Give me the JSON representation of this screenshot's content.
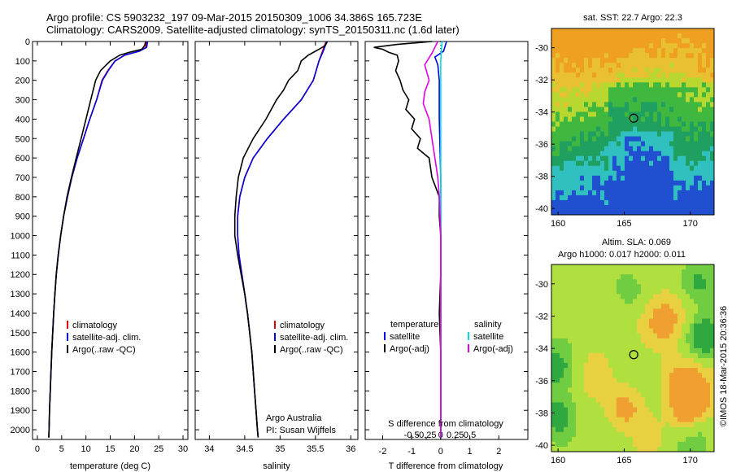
{
  "title": {
    "line1": "Argo profile: CS 5903232_197 09-Mar-2015 20150309_1006 34.386S 165.723E",
    "line2": "Climatology: CARS2009. Satellite-adjusted climatology: synTS_20150311.nc (1.6d later)"
  },
  "colors": {
    "climatology": "#e00000",
    "satellite": "#0000e0",
    "argo": "#000000",
    "sal_satellite": "#00e0e0",
    "sal_argo": "#e000e0"
  },
  "credits": {
    "org": "Argo Australia",
    "pi": "PI: Susan Wijffels",
    "stamp": "©IMOS 18-Mar-2015 20:36:36"
  },
  "chart_data": [
    {
      "type": "line",
      "id": "temperature",
      "xlabel": "temperature (deg C)",
      "ylabel": "",
      "xlim": [
        -1,
        31
      ],
      "ylim": [
        2050,
        0
      ],
      "xticks": [
        0,
        5,
        10,
        15,
        20,
        25,
        30
      ],
      "yticks": [
        0,
        100,
        200,
        300,
        400,
        500,
        600,
        700,
        800,
        900,
        1000,
        1100,
        1200,
        1300,
        1400,
        1500,
        1600,
        1700,
        1800,
        1900,
        2000
      ],
      "legend": [
        "climatology",
        "satellite-adj. clim.",
        "Argo(..raw -QC)"
      ],
      "series": [
        {
          "name": "climatology",
          "color_key": "climatology",
          "points": [
            [
              22.5,
              0
            ],
            [
              22.3,
              30
            ],
            [
              21,
              50
            ],
            [
              18,
              70
            ],
            [
              16,
              100
            ],
            [
              14.5,
              150
            ],
            [
              13.3,
              200
            ],
            [
              12.2,
              300
            ],
            [
              10.8,
              400
            ],
            [
              9.5,
              500
            ],
            [
              8.2,
              600
            ],
            [
              7.1,
              700
            ],
            [
              6.2,
              800
            ],
            [
              5.4,
              900
            ],
            [
              4.8,
              1000
            ],
            [
              4.3,
              1100
            ],
            [
              3.9,
              1200
            ],
            [
              3.6,
              1300
            ],
            [
              3.35,
              1400
            ],
            [
              3.15,
              1500
            ],
            [
              2.95,
              1600
            ],
            [
              2.8,
              1700
            ],
            [
              2.65,
              1800
            ],
            [
              2.5,
              1900
            ],
            [
              2.4,
              2000
            ],
            [
              2.35,
              2040
            ]
          ]
        },
        {
          "name": "satellite-adj. clim.",
          "color_key": "satellite",
          "points": [
            [
              22.7,
              0
            ],
            [
              22.5,
              30
            ],
            [
              21,
              50
            ],
            [
              18,
              70
            ],
            [
              16,
              100
            ],
            [
              14.6,
              150
            ],
            [
              13.4,
              200
            ],
            [
              12.2,
              300
            ],
            [
              10.8,
              400
            ],
            [
              9.5,
              500
            ],
            [
              8.2,
              600
            ],
            [
              7.1,
              700
            ],
            [
              6.2,
              800
            ],
            [
              5.4,
              900
            ],
            [
              4.8,
              1000
            ],
            [
              4.3,
              1100
            ],
            [
              3.9,
              1200
            ],
            [
              3.6,
              1300
            ],
            [
              3.35,
              1400
            ],
            [
              3.15,
              1500
            ],
            [
              2.95,
              1600
            ],
            [
              2.8,
              1700
            ],
            [
              2.65,
              1800
            ],
            [
              2.5,
              1900
            ],
            [
              2.4,
              2000
            ],
            [
              2.35,
              2040
            ]
          ]
        },
        {
          "name": "Argo(..raw -QC)",
          "color_key": "argo",
          "points": [
            [
              22.3,
              0
            ],
            [
              22.1,
              20
            ],
            [
              21.5,
              40
            ],
            [
              19,
              55
            ],
            [
              17,
              70
            ],
            [
              15,
              100
            ],
            [
              13,
              150
            ],
            [
              12,
              200
            ],
            [
              11,
              300
            ],
            [
              10,
              400
            ],
            [
              9,
              500
            ],
            [
              8,
              600
            ],
            [
              7,
              700
            ],
            [
              6.1,
              800
            ],
            [
              5.4,
              900
            ],
            [
              4.8,
              1000
            ],
            [
              4.3,
              1100
            ],
            [
              3.9,
              1200
            ],
            [
              3.6,
              1300
            ],
            [
              3.35,
              1400
            ],
            [
              3.15,
              1500
            ],
            [
              2.95,
              1600
            ],
            [
              2.8,
              1700
            ],
            [
              2.65,
              1800
            ],
            [
              2.5,
              1900
            ],
            [
              2.4,
              2000
            ],
            [
              2.35,
              2040
            ]
          ]
        }
      ]
    },
    {
      "type": "line",
      "id": "salinity",
      "xlabel": "salinity",
      "xlim": [
        33.8,
        36.1
      ],
      "ylim": [
        2050,
        0
      ],
      "xticks": [
        34,
        34.5,
        35,
        35.5,
        36
      ],
      "legend": [
        "climatology",
        "satellite-adj. clim.",
        "Argo(..raw -QC)"
      ],
      "series": [
        {
          "name": "climatology",
          "color_key": "climatology",
          "points": [
            [
              35.65,
              0
            ],
            [
              35.6,
              50
            ],
            [
              35.55,
              100
            ],
            [
              35.47,
              200
            ],
            [
              35.3,
              300
            ],
            [
              35.05,
              400
            ],
            [
              34.82,
              500
            ],
            [
              34.62,
              600
            ],
            [
              34.5,
              700
            ],
            [
              34.43,
              800
            ],
            [
              34.4,
              900
            ],
            [
              34.4,
              1000
            ],
            [
              34.42,
              1100
            ],
            [
              34.46,
              1200
            ],
            [
              34.5,
              1300
            ],
            [
              34.54,
              1400
            ],
            [
              34.57,
              1500
            ],
            [
              34.6,
              1600
            ],
            [
              34.62,
              1700
            ],
            [
              34.64,
              1800
            ],
            [
              34.66,
              1900
            ],
            [
              34.68,
              2000
            ],
            [
              34.69,
              2040
            ]
          ]
        },
        {
          "name": "satellite-adj. clim.",
          "color_key": "satellite",
          "points": [
            [
              35.66,
              0
            ],
            [
              35.61,
              50
            ],
            [
              35.55,
              100
            ],
            [
              35.47,
              200
            ],
            [
              35.3,
              300
            ],
            [
              35.05,
              400
            ],
            [
              34.82,
              500
            ],
            [
              34.62,
              600
            ],
            [
              34.5,
              700
            ],
            [
              34.43,
              800
            ],
            [
              34.4,
              900
            ],
            [
              34.4,
              1000
            ],
            [
              34.42,
              1100
            ],
            [
              34.46,
              1200
            ],
            [
              34.5,
              1300
            ],
            [
              34.54,
              1400
            ],
            [
              34.57,
              1500
            ],
            [
              34.6,
              1600
            ],
            [
              34.62,
              1700
            ],
            [
              34.64,
              1800
            ],
            [
              34.66,
              1900
            ],
            [
              34.68,
              2000
            ],
            [
              34.69,
              2040
            ]
          ]
        },
        {
          "name": "Argo(..raw -QC)",
          "color_key": "argo",
          "points": [
            [
              35.67,
              0
            ],
            [
              35.64,
              20
            ],
            [
              35.55,
              40
            ],
            [
              35.4,
              70
            ],
            [
              35.3,
              100
            ],
            [
              35.25,
              150
            ],
            [
              35.12,
              200
            ],
            [
              35.05,
              250
            ],
            [
              34.95,
              300
            ],
            [
              34.8,
              400
            ],
            [
              34.62,
              500
            ],
            [
              34.48,
              600
            ],
            [
              34.41,
              700
            ],
            [
              34.38,
              800
            ],
            [
              34.36,
              900
            ],
            [
              34.36,
              1000
            ],
            [
              34.4,
              1100
            ],
            [
              34.45,
              1200
            ],
            [
              34.5,
              1300
            ],
            [
              34.54,
              1400
            ],
            [
              34.57,
              1500
            ],
            [
              34.6,
              1600
            ],
            [
              34.62,
              1700
            ],
            [
              34.64,
              1800
            ],
            [
              34.66,
              1900
            ],
            [
              34.68,
              2000
            ],
            [
              34.69,
              2040
            ]
          ]
        }
      ]
    },
    {
      "type": "line",
      "id": "difference",
      "xlabel": "T difference from climatology",
      "top_axis_label": "S difference from climatology",
      "xlim": [
        -2.6,
        3.0
      ],
      "ylim": [
        2050,
        0
      ],
      "xticks": [
        -2,
        -1,
        0,
        1,
        2
      ],
      "top_ticks": [
        "-0.5",
        "-0.25",
        "0",
        "0.25",
        "0.5"
      ],
      "top_tick_values": [
        -1.0,
        -0.5,
        0,
        0.5,
        1.0
      ],
      "legend_temperature": {
        "header": "temperature",
        "items": [
          "satellite",
          "Argo(-adj)"
        ]
      },
      "legend_salinity": {
        "header": "salinity",
        "items": [
          "satellite",
          "Argo(-adj)"
        ]
      },
      "series": [
        {
          "name": "satellite",
          "color_key": "satellite",
          "points": [
            [
              0.2,
              0
            ],
            [
              0.1,
              50
            ],
            [
              -0.2,
              80
            ],
            [
              -0.1,
              120
            ],
            [
              -0.05,
              200
            ],
            [
              -0.05,
              400
            ],
            [
              0,
              700
            ],
            [
              0,
              1000
            ],
            [
              0,
              1500
            ],
            [
              0,
              2040
            ]
          ]
        },
        {
          "name": "Argo(-adj)",
          "color_key": "argo",
          "points": [
            [
              -0.3,
              0
            ],
            [
              -1.5,
              15
            ],
            [
              -2.3,
              30
            ],
            [
              -2.0,
              40
            ],
            [
              -1.8,
              55
            ],
            [
              -1.5,
              70
            ],
            [
              -1.45,
              100
            ],
            [
              -1.55,
              150
            ],
            [
              -1.4,
              200
            ],
            [
              -1.3,
              250
            ],
            [
              -1.1,
              300
            ],
            [
              -1.2,
              350
            ],
            [
              -0.9,
              400
            ],
            [
              -1.0,
              450
            ],
            [
              -0.7,
              500
            ],
            [
              -0.8,
              550
            ],
            [
              -0.4,
              600
            ],
            [
              -0.3,
              700
            ],
            [
              -0.05,
              800
            ],
            [
              -0.05,
              900
            ],
            [
              0,
              1000
            ],
            [
              0,
              1200
            ],
            [
              -0.05,
              1400
            ],
            [
              0,
              1600
            ],
            [
              0,
              1800
            ],
            [
              0,
              2040
            ]
          ]
        },
        {
          "name": "satellite",
          "color_key": "sal_satellite",
          "points": [
            [
              0.05,
              0
            ],
            [
              0.02,
              50
            ],
            [
              0,
              100
            ],
            [
              0,
              300
            ],
            [
              0,
              600
            ],
            [
              0,
              1000
            ],
            [
              0,
              2040
            ]
          ]
        },
        {
          "name": "Argo(-adj)",
          "color_key": "sal_argo",
          "points": [
            [
              -0.1,
              0
            ],
            [
              -0.2,
              30
            ],
            [
              -0.3,
              60
            ],
            [
              -0.55,
              120
            ],
            [
              -0.4,
              200
            ],
            [
              -0.55,
              260
            ],
            [
              -0.6,
              320
            ],
            [
              -0.4,
              400
            ],
            [
              -0.3,
              500
            ],
            [
              -0.2,
              600
            ],
            [
              -0.1,
              700
            ],
            [
              -0.05,
              800
            ],
            [
              0,
              1000
            ],
            [
              0,
              2040
            ]
          ]
        }
      ]
    },
    {
      "type": "heatmap",
      "id": "sst_map",
      "title": "sat. SST: 22.7 Argo: 22.3",
      "xlim": [
        159.5,
        171.8
      ],
      "ylim": [
        -40.4,
        -28.8
      ],
      "xticks": [
        160,
        165,
        170
      ],
      "yticks": [
        -30,
        -32,
        -34,
        -36,
        -38,
        -40
      ],
      "marker": {
        "lon": 165.723,
        "lat": -34.386
      }
    },
    {
      "type": "heatmap",
      "id": "sla_map",
      "title": "Altim. SLA: 0.069",
      "subtitle": "Argo h1000: 0.017 h2000: 0.011",
      "xlim": [
        159.5,
        171.8
      ],
      "ylim": [
        -40.4,
        -28.8
      ],
      "xticks": [
        160,
        165,
        170
      ],
      "yticks": [
        -30,
        -32,
        -34,
        -36,
        -38,
        -40
      ],
      "marker": {
        "lon": 165.723,
        "lat": -34.386
      }
    }
  ]
}
